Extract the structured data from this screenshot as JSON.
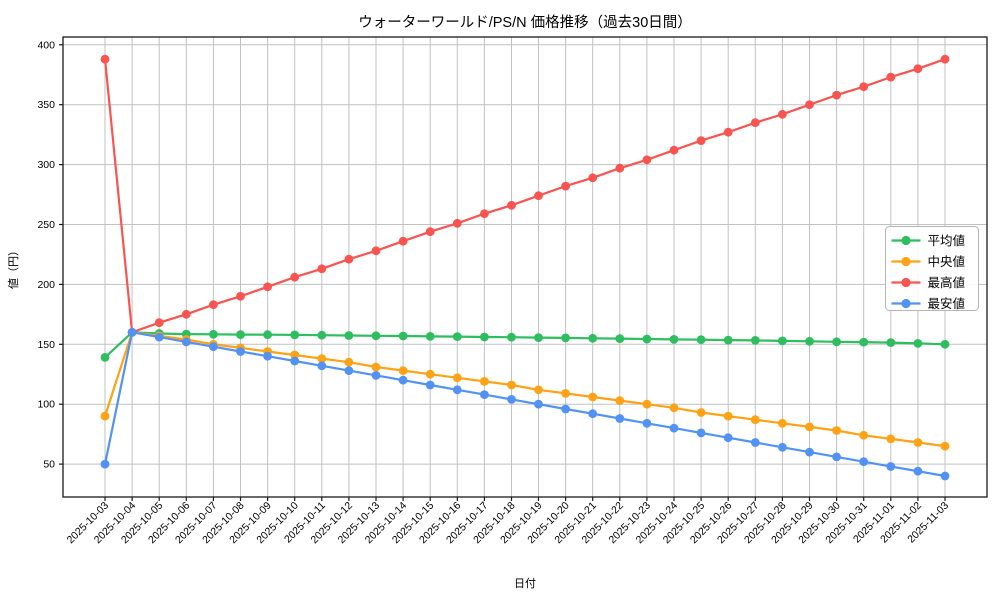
{
  "chart_data": {
    "type": "line",
    "title": "ウォーターワールド/PS/N 価格推移（過去30日間）",
    "xlabel": "日付",
    "ylabel": "値（円）",
    "x": [
      "2025-10-03",
      "2025-10-04",
      "2025-10-05",
      "2025-10-06",
      "2025-10-07",
      "2025-10-08",
      "2025-10-09",
      "2025-10-10",
      "2025-10-11",
      "2025-10-12",
      "2025-10-13",
      "2025-10-14",
      "2025-10-15",
      "2025-10-16",
      "2025-10-17",
      "2025-10-18",
      "2025-10-19",
      "2025-10-20",
      "2025-10-21",
      "2025-10-22",
      "2025-10-23",
      "2025-10-24",
      "2025-10-25",
      "2025-10-26",
      "2025-10-27",
      "2025-10-28",
      "2025-10-29",
      "2025-10-30",
      "2025-10-31",
      "2025-11-01",
      "2025-11-02",
      "2025-11-03"
    ],
    "series": [
      {
        "key": "average",
        "name": "平均値",
        "color": "#2EBD5F",
        "values": [
          139,
          160,
          159,
          158.5,
          158.3,
          158.1,
          158,
          157.8,
          157.6,
          157.3,
          157.1,
          156.9,
          156.6,
          156.4,
          156.1,
          155.9,
          155.6,
          155.3,
          155,
          154.7,
          154.4,
          154.1,
          153.8,
          153.5,
          153.2,
          152.8,
          152.5,
          152.1,
          151.8,
          151.4,
          150.7,
          150
        ]
      },
      {
        "key": "median",
        "name": "中央値",
        "color": "#FFA216",
        "values": [
          90,
          160,
          157,
          154,
          150,
          147,
          144,
          141,
          138,
          135,
          131,
          128,
          125,
          122,
          119,
          116,
          112,
          109,
          106,
          103,
          100,
          97,
          93,
          90,
          87,
          84,
          81,
          78,
          74,
          71,
          68,
          65
        ]
      },
      {
        "key": "max",
        "name": "最高値",
        "color": "#F95450",
        "values": [
          388,
          160,
          168,
          175,
          183,
          190,
          198,
          206,
          213,
          221,
          228,
          236,
          244,
          251,
          259,
          266,
          274,
          282,
          289,
          297,
          304,
          312,
          320,
          327,
          335,
          342,
          350,
          358,
          365,
          373,
          380,
          388
        ]
      },
      {
        "key": "min",
        "name": "最安値",
        "color": "#5292F4",
        "values": [
          50,
          160,
          156,
          152,
          148,
          144,
          140,
          136,
          132,
          128,
          124,
          120,
          116,
          112,
          108,
          104,
          100,
          96,
          92,
          88,
          84,
          80,
          76,
          72,
          68,
          64,
          60,
          56,
          52,
          48,
          44,
          40
        ]
      }
    ],
    "yticks": [
      50,
      100,
      150,
      200,
      250,
      300,
      350,
      400
    ],
    "ylim": [
      22.5,
      406.5
    ],
    "x_margin": 1.55,
    "grid": true,
    "legend_position": "center-right",
    "marker": "circle",
    "xtick_rotation": 45
  },
  "style_colors": {
    "grid": "#c2c2c2",
    "spine": "#1a1a1a",
    "tick": "#1a1a1a",
    "legend_border": "#b5b5b5",
    "background": "#ffffff"
  }
}
